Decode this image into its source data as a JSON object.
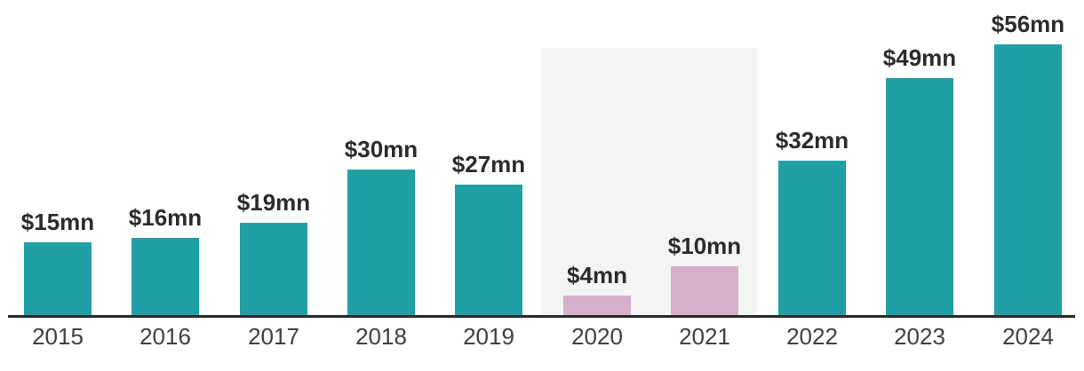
{
  "chart_data": {
    "type": "bar",
    "categories": [
      "2015",
      "2016",
      "2017",
      "2018",
      "2019",
      "2020",
      "2021",
      "2022",
      "2023",
      "2024"
    ],
    "values": [
      15,
      16,
      19,
      30,
      27,
      4,
      10,
      32,
      49,
      56
    ],
    "data_labels": [
      "$15mn",
      "$16mn",
      "$19mn",
      "$30mn",
      "$27mn",
      "$4mn",
      "$10mn",
      "$32mn",
      "$49mn",
      "$56mn"
    ],
    "unit": "$mn",
    "ylim": [
      0,
      56
    ],
    "grid": false,
    "legend": false,
    "x_axis_line": true,
    "highlighted_categories": [
      "2020",
      "2021"
    ],
    "colors": {
      "bar": "#20A0A5",
      "highlighted_bar": "#D6AFCB",
      "highlight_band": "#F4F4F4",
      "axis": "#2B2B2B",
      "value_label": "#2B2B2B",
      "category_label": "#3F3F3F",
      "background": "#FFFFFF"
    }
  }
}
